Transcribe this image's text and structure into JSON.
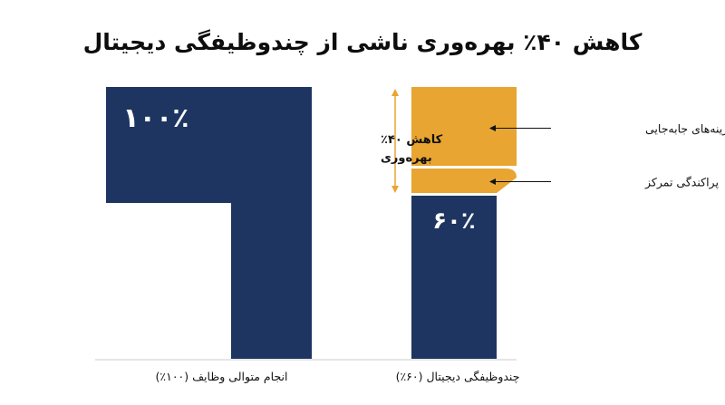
{
  "chart_data": {
    "type": "bar",
    "title": "کاهش ۴۰٪ بهره‌وری ناشی از چندوظیفگی دیجیتال",
    "categories": [
      "انجام متوالی وظایف (۱۰۰٪)",
      "چندوظیفگی دیجیتال (۶۰٪)"
    ],
    "ylim": [
      0,
      100
    ],
    "bars": [
      {
        "category": "انجام متوالی وظایف (۱۰۰٪)",
        "value": 100,
        "value_label": "۱۰۰٪",
        "color": "#1e3561"
      },
      {
        "category": "چندوظیفگی دیجیتال (۶۰٪)",
        "value": 60,
        "value_label": "۶۰٪",
        "color": "#1e3561",
        "stack": [
          {
            "name": "پراکندگی تمرکز",
            "value": 10,
            "color": "#e8a531"
          },
          {
            "name": "هزینه‌های جابه‌جایی",
            "value": 30,
            "color": "#e8a531"
          }
        ]
      }
    ],
    "annotation": {
      "lines": [
        "کاهش ۴۰٪",
        "بهره‌وری"
      ],
      "color": "#e8a531"
    },
    "legend": "none",
    "grid": false
  }
}
